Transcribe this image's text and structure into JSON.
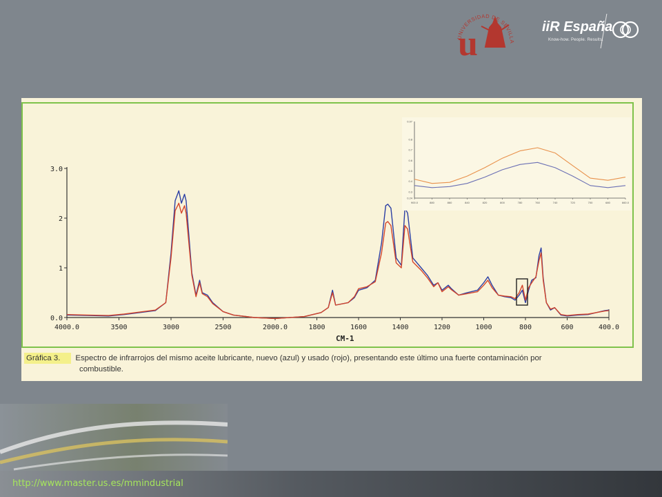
{
  "logos": {
    "university_ring": "UNIVERSIDAD DE SEVILLA",
    "university_letter": "u",
    "iir_brand": "iiR España",
    "iir_tagline": "Know-how. People. Results."
  },
  "footer": {
    "url": "http://www.master.us.es/mmindustrial"
  },
  "colors": {
    "background": "#7f868d",
    "panel": "#f9f3d9",
    "panel_border": "#7ec24a",
    "new_oil": "#2b3ea3",
    "used_oil": "#d4452a",
    "url": "#a6e65c",
    "caption_highlight": "#f4f08a"
  },
  "caption": {
    "label": "Gráfica 3.",
    "line1": "Espectro de infrarrojos del mismo aceite lubricante, nuevo (azul) y usado (rojo), presentando este último una fuerte contaminación por",
    "line2": "combustible."
  },
  "chart_data": [
    {
      "type": "line",
      "xlabel": "CM-1",
      "x_ticks": [
        "4000.0",
        "3500",
        "3000",
        "2500",
        "2000.0",
        "1800",
        "1600",
        "1400",
        "1200",
        "1000",
        "800",
        "600",
        "400.0"
      ],
      "y_ticks": [
        "3.0",
        "2",
        "1",
        "0.0"
      ],
      "ylim": [
        0,
        3
      ],
      "x_axis_break": "two linear scales: 4000-2000 and 2000-400",
      "series": [
        {
          "name": "nuevo (azul)",
          "color": "#2b3ea3",
          "points": [
            [
              4000,
              0.05
            ],
            [
              3800,
              0.04
            ],
            [
              3600,
              0.03
            ],
            [
              3450,
              0.06
            ],
            [
              3300,
              0.1
            ],
            [
              3150,
              0.14
            ],
            [
              3050,
              0.3
            ],
            [
              3000,
              1.3
            ],
            [
              2960,
              2.35
            ],
            [
              2925,
              2.55
            ],
            [
              2900,
              2.3
            ],
            [
              2870,
              2.48
            ],
            [
              2855,
              2.35
            ],
            [
              2800,
              0.9
            ],
            [
              2760,
              0.45
            ],
            [
              2725,
              0.75
            ],
            [
              2700,
              0.5
            ],
            [
              2650,
              0.45
            ],
            [
              2600,
              0.3
            ],
            [
              2500,
              0.12
            ],
            [
              2400,
              0.05
            ],
            [
              2200,
              0.0
            ],
            [
              2000,
              -0.02
            ],
            [
              1860,
              0.02
            ],
            [
              1780,
              0.1
            ],
            [
              1745,
              0.2
            ],
            [
              1725,
              0.55
            ],
            [
              1710,
              0.25
            ],
            [
              1650,
              0.3
            ],
            [
              1620,
              0.4
            ],
            [
              1600,
              0.55
            ],
            [
              1560,
              0.6
            ],
            [
              1520,
              0.75
            ],
            [
              1490,
              1.5
            ],
            [
              1470,
              2.25
            ],
            [
              1460,
              2.28
            ],
            [
              1445,
              2.2
            ],
            [
              1420,
              1.2
            ],
            [
              1395,
              1.05
            ],
            [
              1378,
              2.2
            ],
            [
              1365,
              2.1
            ],
            [
              1340,
              1.2
            ],
            [
              1300,
              1.0
            ],
            [
              1270,
              0.85
            ],
            [
              1240,
              0.65
            ],
            [
              1220,
              0.7
            ],
            [
              1200,
              0.55
            ],
            [
              1170,
              0.65
            ],
            [
              1155,
              0.58
            ],
            [
              1120,
              0.45
            ],
            [
              1080,
              0.5
            ],
            [
              1030,
              0.55
            ],
            [
              1000,
              0.7
            ],
            [
              980,
              0.82
            ],
            [
              960,
              0.65
            ],
            [
              930,
              0.45
            ],
            [
              900,
              0.42
            ],
            [
              870,
              0.4
            ],
            [
              850,
              0.35
            ],
            [
              830,
              0.45
            ],
            [
              815,
              0.55
            ],
            [
              800,
              0.3
            ],
            [
              785,
              0.55
            ],
            [
              770,
              0.75
            ],
            [
              750,
              0.8
            ],
            [
              735,
              1.25
            ],
            [
              725,
              1.4
            ],
            [
              715,
              0.8
            ],
            [
              700,
              0.3
            ],
            [
              680,
              0.15
            ],
            [
              660,
              0.2
            ],
            [
              630,
              0.05
            ],
            [
              600,
              0.03
            ],
            [
              550,
              0.05
            ],
            [
              500,
              0.06
            ],
            [
              460,
              0.1
            ],
            [
              420,
              0.14
            ],
            [
              400,
              0.15
            ]
          ]
        },
        {
          "name": "usado (rojo)",
          "color": "#d4452a",
          "points": [
            [
              4000,
              0.06
            ],
            [
              3800,
              0.05
            ],
            [
              3600,
              0.04
            ],
            [
              3450,
              0.07
            ],
            [
              3300,
              0.11
            ],
            [
              3150,
              0.15
            ],
            [
              3050,
              0.3
            ],
            [
              3000,
              1.2
            ],
            [
              2960,
              2.15
            ],
            [
              2925,
              2.3
            ],
            [
              2900,
              2.1
            ],
            [
              2870,
              2.25
            ],
            [
              2855,
              2.1
            ],
            [
              2800,
              0.85
            ],
            [
              2760,
              0.42
            ],
            [
              2725,
              0.7
            ],
            [
              2700,
              0.48
            ],
            [
              2650,
              0.42
            ],
            [
              2600,
              0.28
            ],
            [
              2500,
              0.12
            ],
            [
              2400,
              0.05
            ],
            [
              2200,
              0.0
            ],
            [
              2000,
              -0.02
            ],
            [
              1860,
              0.02
            ],
            [
              1780,
              0.1
            ],
            [
              1745,
              0.2
            ],
            [
              1725,
              0.5
            ],
            [
              1710,
              0.25
            ],
            [
              1650,
              0.3
            ],
            [
              1620,
              0.42
            ],
            [
              1600,
              0.58
            ],
            [
              1560,
              0.62
            ],
            [
              1520,
              0.72
            ],
            [
              1490,
              1.3
            ],
            [
              1470,
              1.9
            ],
            [
              1460,
              1.93
            ],
            [
              1445,
              1.85
            ],
            [
              1420,
              1.1
            ],
            [
              1395,
              1.0
            ],
            [
              1378,
              1.85
            ],
            [
              1365,
              1.78
            ],
            [
              1340,
              1.12
            ],
            [
              1300,
              0.95
            ],
            [
              1270,
              0.8
            ],
            [
              1240,
              0.62
            ],
            [
              1220,
              0.7
            ],
            [
              1200,
              0.52
            ],
            [
              1170,
              0.62
            ],
            [
              1155,
              0.56
            ],
            [
              1120,
              0.45
            ],
            [
              1080,
              0.48
            ],
            [
              1030,
              0.52
            ],
            [
              1000,
              0.65
            ],
            [
              980,
              0.75
            ],
            [
              960,
              0.6
            ],
            [
              930,
              0.45
            ],
            [
              900,
              0.43
            ],
            [
              870,
              0.42
            ],
            [
              850,
              0.38
            ],
            [
              830,
              0.5
            ],
            [
              815,
              0.65
            ],
            [
              800,
              0.35
            ],
            [
              785,
              0.6
            ],
            [
              770,
              0.7
            ],
            [
              750,
              0.82
            ],
            [
              735,
              1.15
            ],
            [
              725,
              1.3
            ],
            [
              715,
              0.75
            ],
            [
              700,
              0.3
            ],
            [
              680,
              0.17
            ],
            [
              660,
              0.2
            ],
            [
              630,
              0.06
            ],
            [
              600,
              0.04
            ],
            [
              550,
              0.06
            ],
            [
              500,
              0.07
            ],
            [
              460,
              0.1
            ],
            [
              420,
              0.13
            ],
            [
              400,
              0.14
            ]
          ]
        }
      ]
    },
    {
      "type": "line",
      "x_ticks": [
        "900.0",
        "880",
        "860",
        "840",
        "820",
        "800",
        "780",
        "760",
        "740",
        "720",
        "700",
        "680",
        "660.0"
      ],
      "y_ticks": [
        "0.97",
        "0.8",
        "0.7",
        "0.6",
        "0.5",
        "0.4",
        "0.3",
        "0.24"
      ],
      "ylim": [
        0.24,
        0.97
      ],
      "series": [
        {
          "name": "usado (rojo)",
          "color": "#e8904a",
          "x": [
            900,
            880,
            860,
            840,
            820,
            800,
            780,
            760,
            740,
            720,
            700,
            680,
            660
          ],
          "values": [
            0.42,
            0.38,
            0.39,
            0.45,
            0.53,
            0.62,
            0.69,
            0.72,
            0.67,
            0.55,
            0.43,
            0.41,
            0.44
          ]
        },
        {
          "name": "nuevo (azul)",
          "color": "#6a6fb4",
          "x": [
            900,
            880,
            860,
            840,
            820,
            800,
            780,
            760,
            740,
            720,
            700,
            680,
            660
          ],
          "values": [
            0.36,
            0.34,
            0.35,
            0.38,
            0.44,
            0.51,
            0.56,
            0.58,
            0.53,
            0.45,
            0.36,
            0.34,
            0.36
          ]
        }
      ]
    }
  ]
}
